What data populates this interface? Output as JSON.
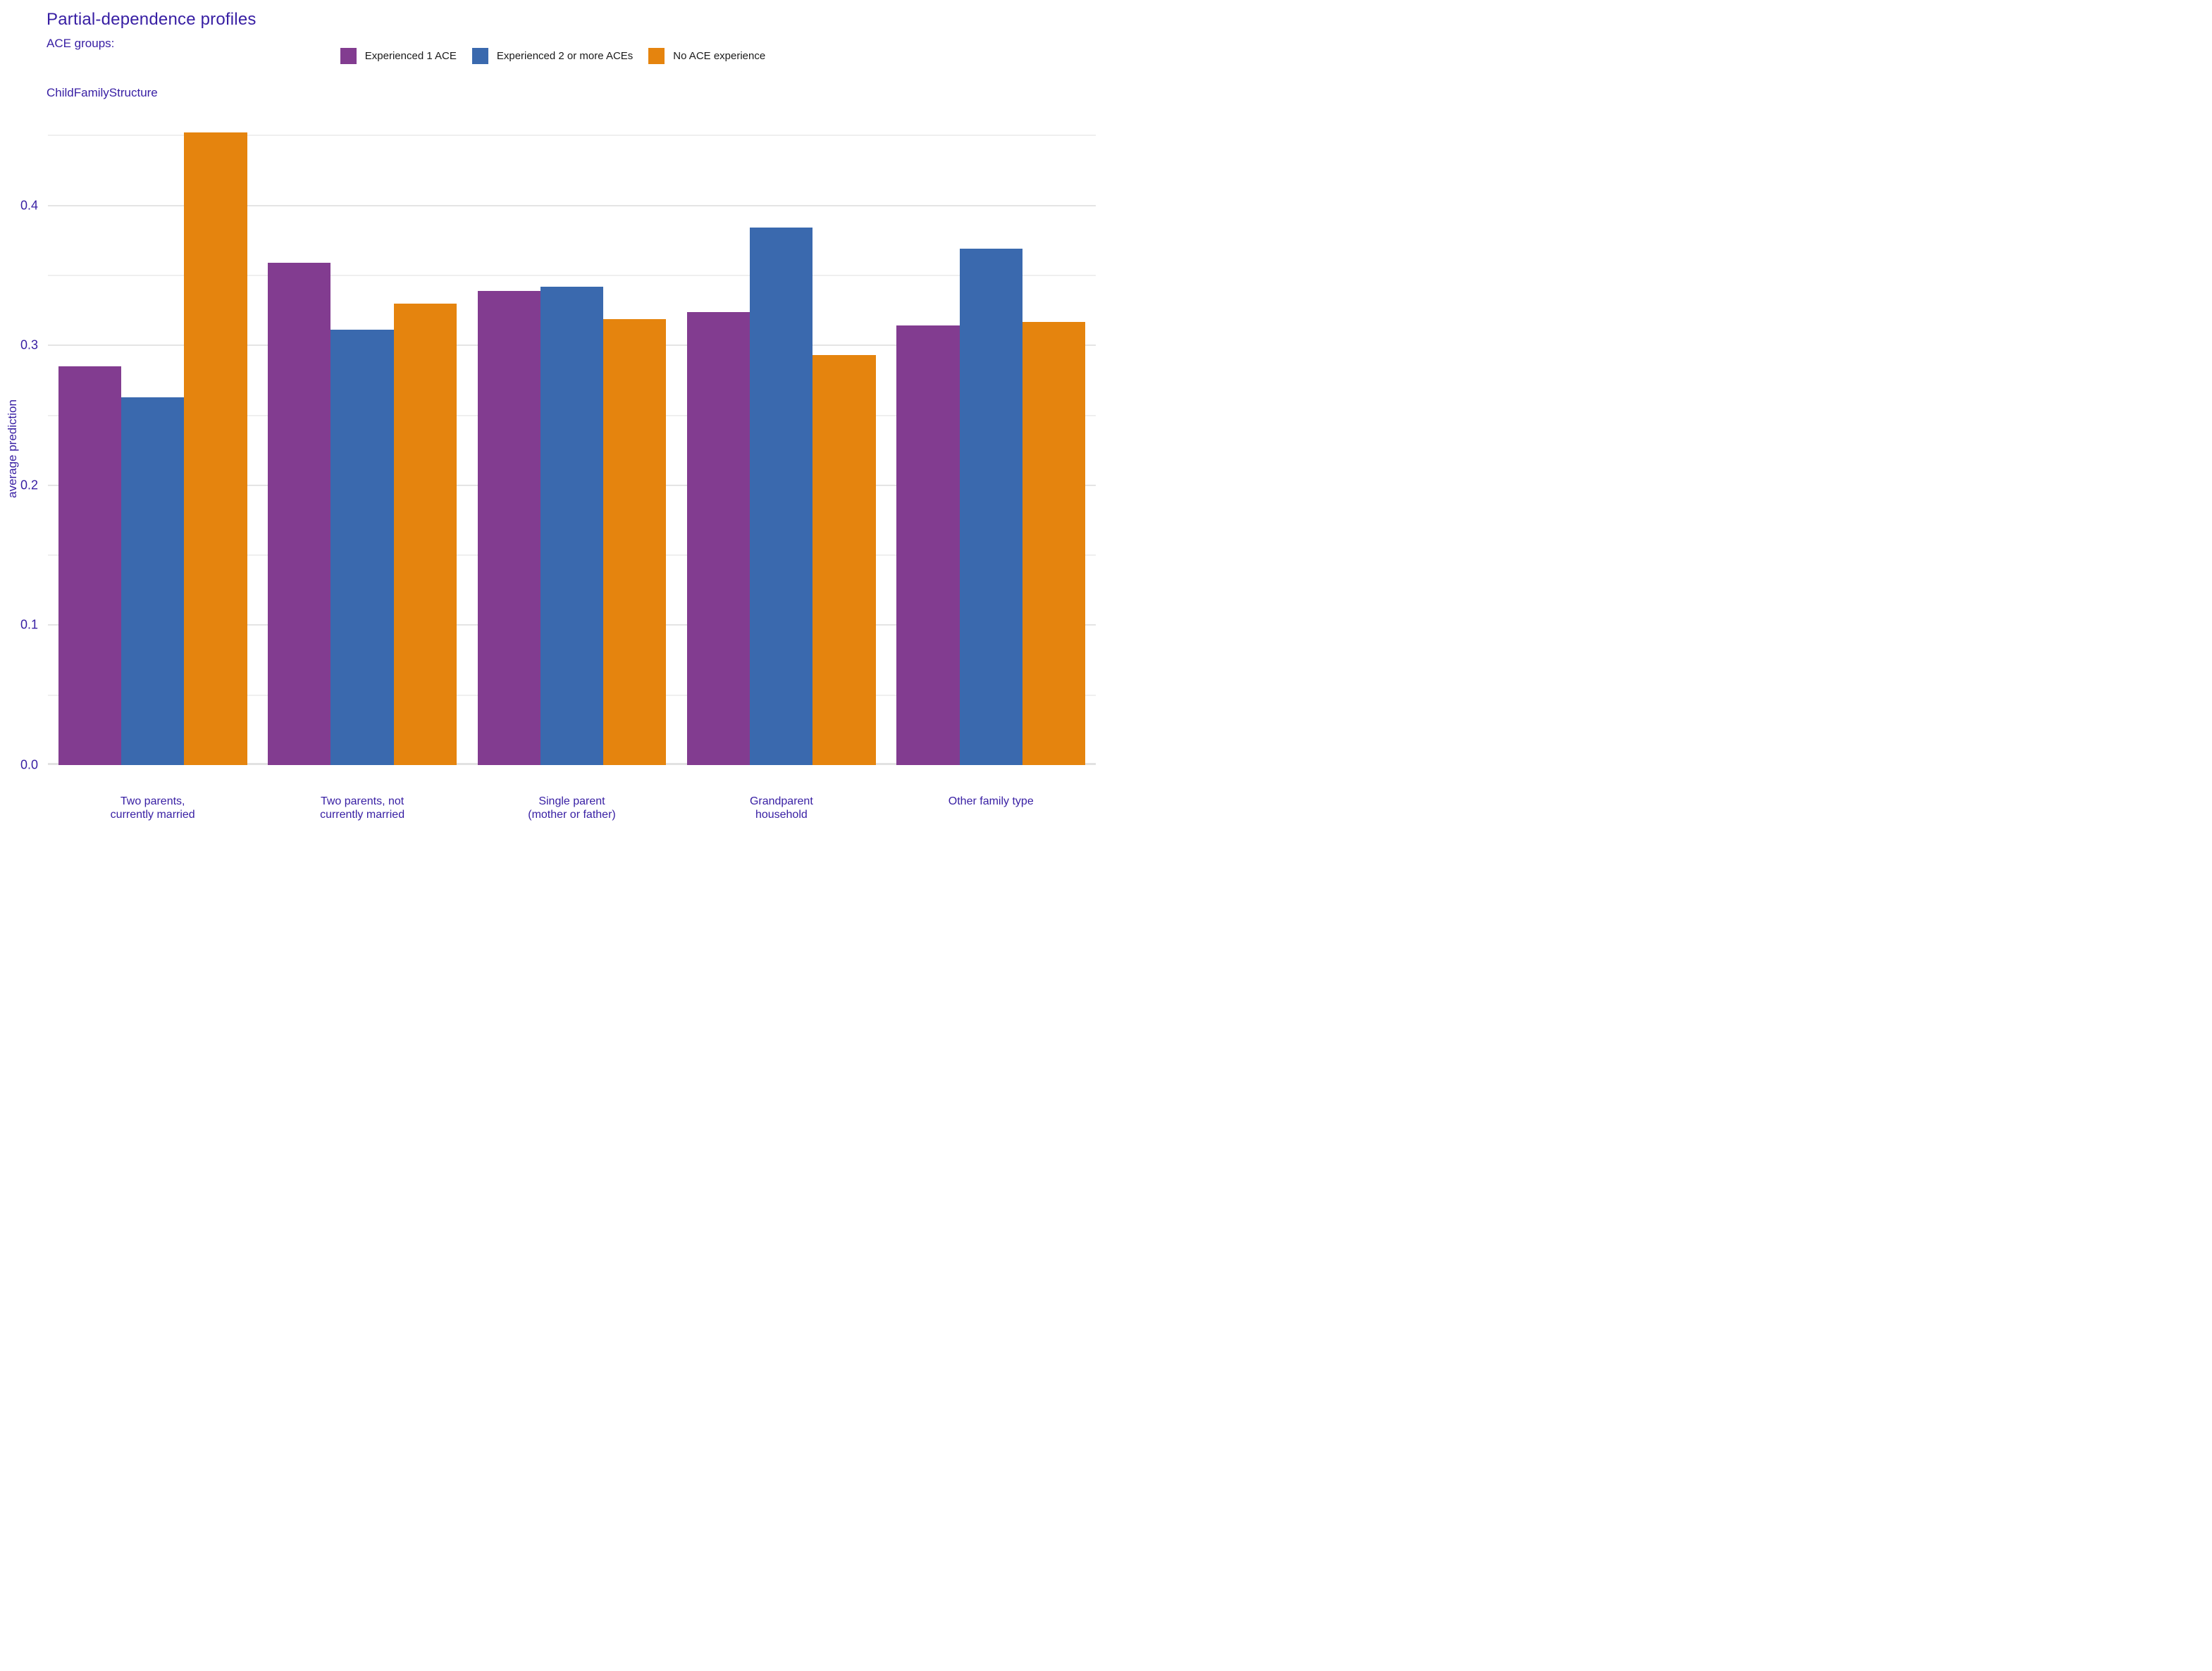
{
  "header": {
    "title": "Partial-dependence profiles",
    "legend_title": "ACE groups:",
    "facet_label": "ChildFamilyStructure"
  },
  "style": {
    "accent_text_color": "#371ea3",
    "legend_text_color": "#1a1a1a",
    "major_grid_color": "#e4e4e4",
    "minor_grid_color": "#efefef",
    "baseline_color": "#e2e2e2",
    "background_color": "#ffffff"
  },
  "chart_data": {
    "type": "bar",
    "title": "Partial-dependence profiles",
    "legend_title": "ACE groups:",
    "facet_label": "ChildFamilyStructure",
    "xlabel": "",
    "ylabel": "average prediction",
    "legend_position": "top-center",
    "grid": "horizontal-only",
    "categories": [
      "Two parents,\ncurrently married",
      "Two parents, not\ncurrently married",
      "Single parent\n(mother or father)",
      "Grandparent\nhousehold",
      "Other family type"
    ],
    "series": [
      {
        "name": "Experienced 1 ACE",
        "color": "#823C90",
        "values": [
          0.285,
          0.359,
          0.339,
          0.324,
          0.314
        ]
      },
      {
        "name": "Experienced 2 or more ACEs",
        "color": "#3A69AE",
        "values": [
          0.263,
          0.311,
          0.342,
          0.384,
          0.369
        ]
      },
      {
        "name": "No ACE experience",
        "color": "#E5840E",
        "values": [
          0.452,
          0.33,
          0.319,
          0.293,
          0.317
        ]
      }
    ],
    "y_axis": {
      "tick_labels": [
        "0.0",
        "0.1",
        "0.2",
        "0.3",
        "0.4"
      ],
      "ticks": [
        0.0,
        0.1,
        0.2,
        0.3,
        0.4
      ],
      "minor_ticks": [
        0.05,
        0.15,
        0.25,
        0.35,
        0.45
      ],
      "ylim": [
        0,
        0.4542
      ]
    }
  }
}
